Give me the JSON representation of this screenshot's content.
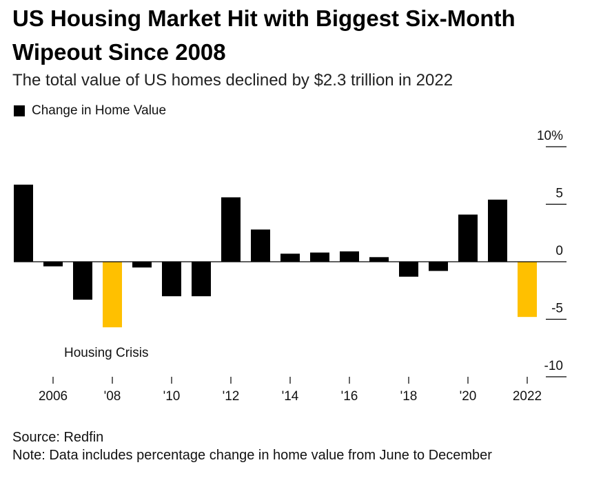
{
  "title": "US Housing Market Hit with Biggest Six-Month Wipeout Since 2008",
  "subtitle": "The total value of US homes declined by $2.3 trillion in 2022",
  "legend": {
    "label": "Change in Home Value",
    "color": "#000000"
  },
  "annotation": "Housing Crisis",
  "source": "Source: Redfin",
  "note": "Note: Data includes percentage change in home value from June to December",
  "colors": {
    "bar": "#000000",
    "highlight": "#ffc000"
  },
  "chart_data": {
    "type": "bar",
    "title": "US Housing Market Hit with Biggest Six-Month Wipeout Since 2008",
    "subtitle": "The total value of US homes declined by $2.3 trillion in 2022",
    "xlabel": "",
    "ylabel": "",
    "x": [
      2005,
      2006,
      2007,
      2008,
      2009,
      2010,
      2011,
      2012,
      2013,
      2014,
      2015,
      2016,
      2017,
      2018,
      2019,
      2020,
      2021,
      2022
    ],
    "values": [
      6.7,
      -0.4,
      -3.3,
      -5.7,
      -0.5,
      -3.0,
      -3.0,
      5.6,
      2.8,
      0.7,
      0.8,
      0.9,
      0.4,
      -1.3,
      -0.8,
      4.1,
      5.4,
      -4.8
    ],
    "highlight": [
      2008,
      2022
    ],
    "ylim": [
      -10,
      10
    ],
    "y_ticks": [
      {
        "value": 10,
        "label": "10%"
      },
      {
        "value": 5,
        "label": "5"
      },
      {
        "value": 0,
        "label": "0"
      },
      {
        "value": -5,
        "label": "-5"
      },
      {
        "value": -10,
        "label": "-10"
      }
    ],
    "x_ticks": [
      {
        "value": 2006,
        "label": "2006"
      },
      {
        "value": 2008,
        "label": "'08"
      },
      {
        "value": 2010,
        "label": "'10"
      },
      {
        "value": 2012,
        "label": "'12"
      },
      {
        "value": 2014,
        "label": "'14"
      },
      {
        "value": 2016,
        "label": "'16"
      },
      {
        "value": 2018,
        "label": "'18"
      },
      {
        "value": 2020,
        "label": "'20"
      },
      {
        "value": 2022,
        "label": "2022"
      }
    ],
    "legend": "top-left",
    "grid": false
  }
}
